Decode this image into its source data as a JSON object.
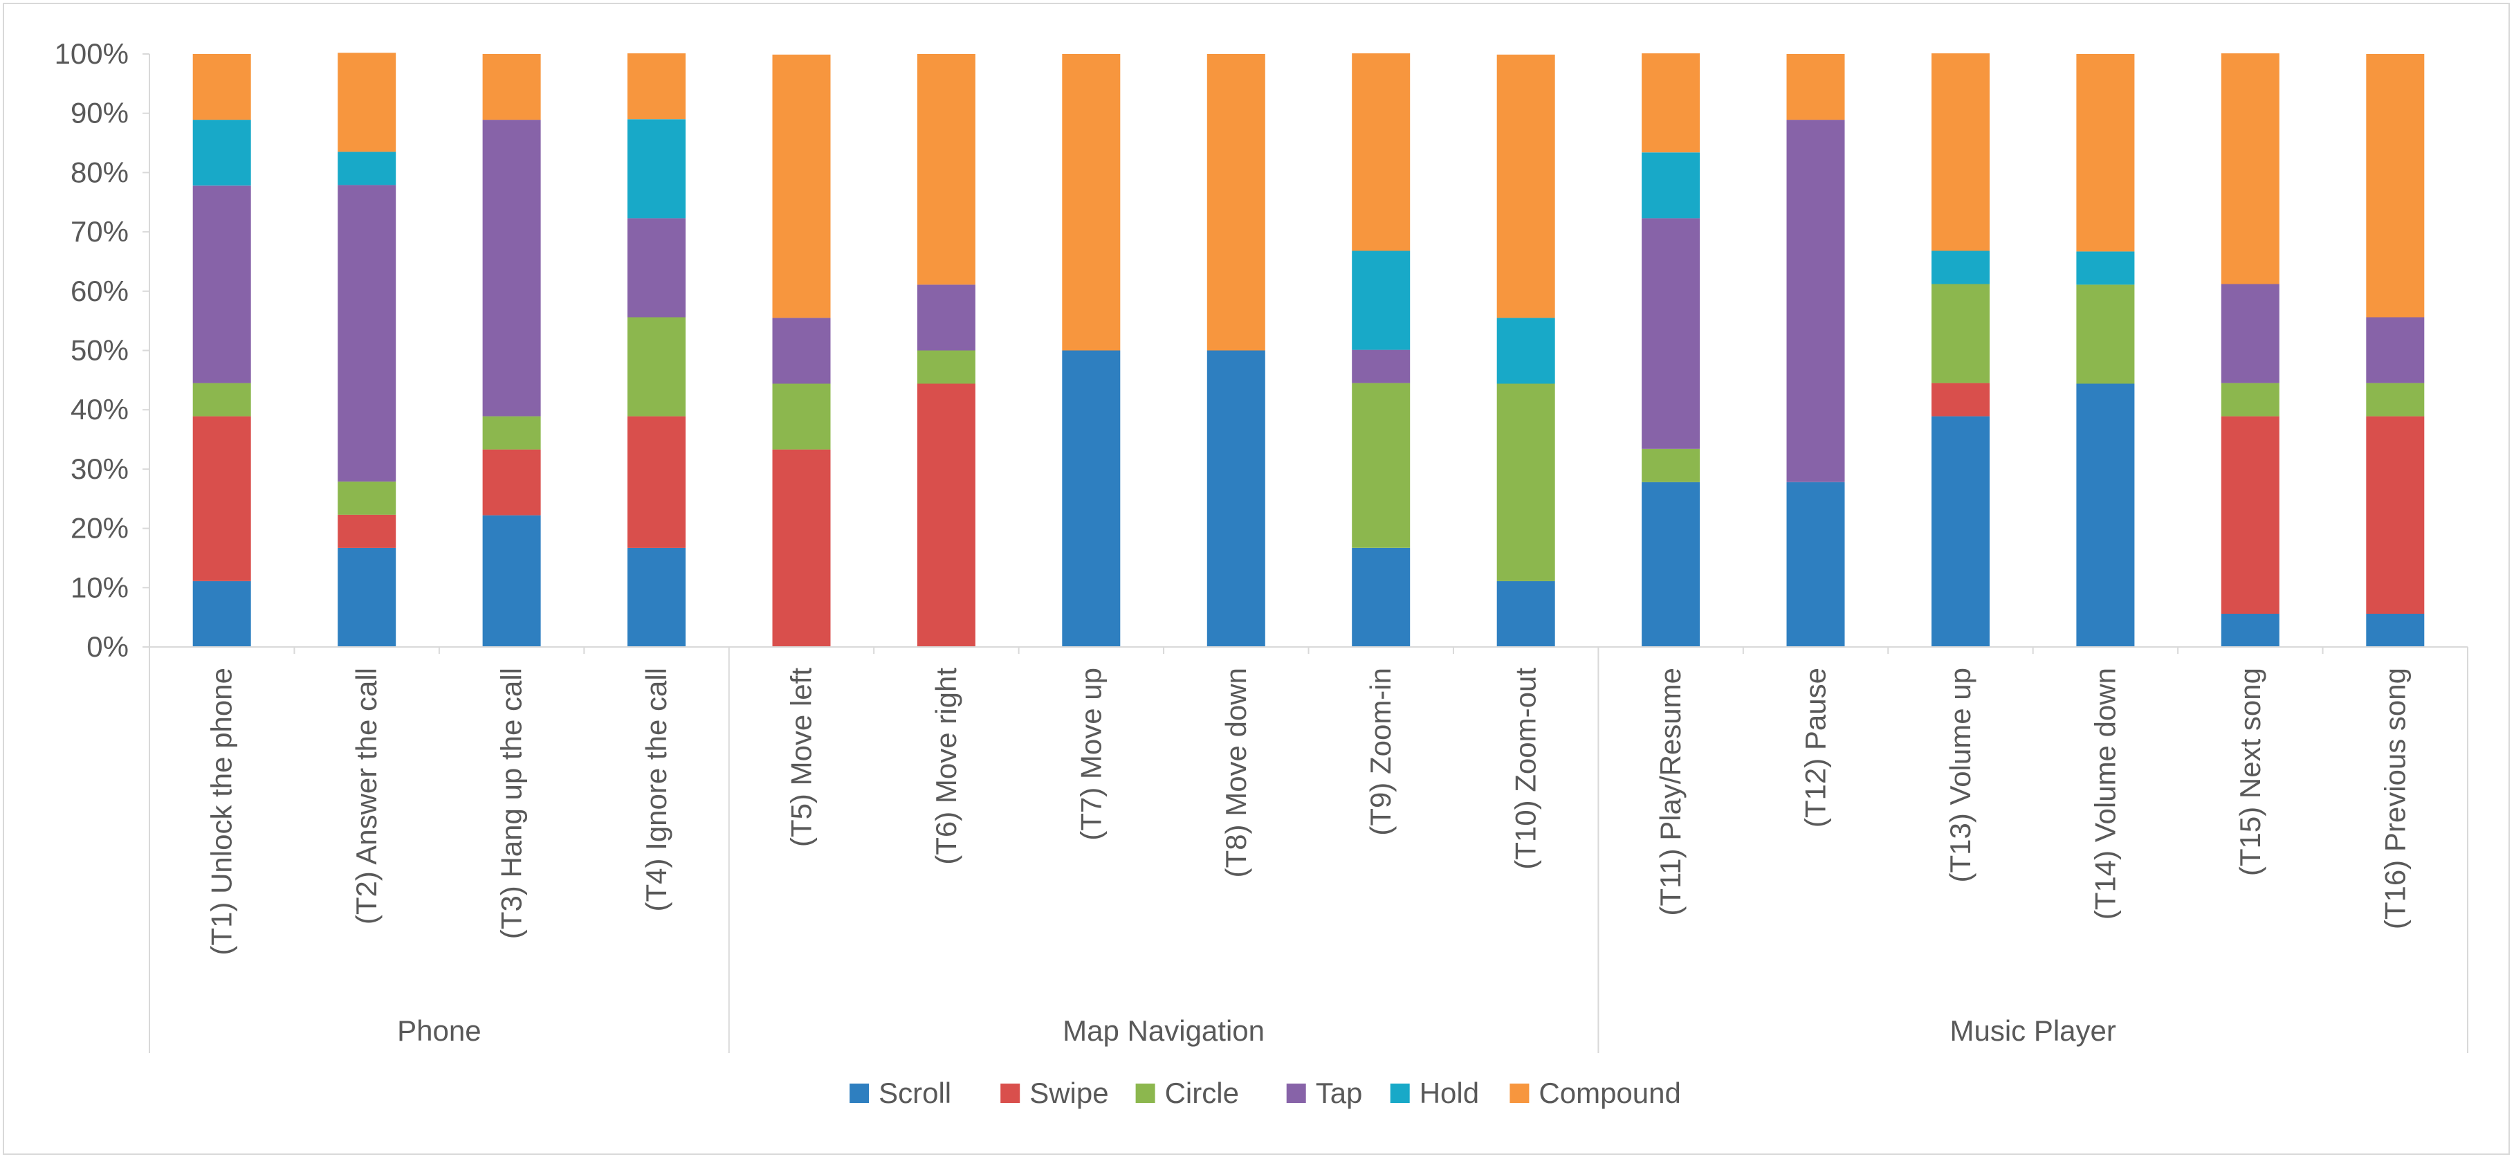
{
  "chart_data": {
    "type": "bar",
    "stacked": true,
    "title": "",
    "xlabel": "",
    "ylabel": "",
    "ylim": [
      0,
      100
    ],
    "yticks": [
      "0%",
      "10%",
      "20%",
      "30%",
      "40%",
      "50%",
      "60%",
      "70%",
      "80%",
      "90%",
      "100%"
    ],
    "grid": false,
    "legend_position": "bottom-center",
    "groups": [
      {
        "name": "Phone",
        "start": 0,
        "count": 4
      },
      {
        "name": "Map Navigation",
        "start": 4,
        "count": 6
      },
      {
        "name": "Music Player",
        "start": 10,
        "count": 6
      }
    ],
    "categories": [
      "(T1) Unlock the phone",
      "(T2) Answer the call",
      "(T3) Hang up the call",
      "(T4) Ignore the call",
      "(T5) Move left",
      "(T6) Move right",
      "(T7) Move up",
      "(T8) Move down",
      "(T9) Zoom-in",
      "(T10) Zoom-out",
      "(T11) Play/Resume",
      "(T12) Pause",
      "(T13) Volume up",
      "(T14) Volume down",
      "(T15) Next song",
      "(T16) Previous song"
    ],
    "series": [
      {
        "name": "Scroll",
        "color": "#2e7fc0",
        "values": [
          11.1,
          16.7,
          22.2,
          16.7,
          0,
          0,
          50,
          50,
          16.7,
          11.1,
          27.8,
          27.8,
          38.9,
          44.4,
          5.6,
          5.6
        ]
      },
      {
        "name": "Swipe",
        "color": "#d94f4c",
        "values": [
          27.8,
          5.6,
          11.1,
          22.2,
          33.3,
          44.4,
          0,
          0,
          0,
          0,
          0,
          0,
          5.6,
          0,
          33.3,
          33.3
        ]
      },
      {
        "name": "Circle",
        "color": "#8cb74e",
        "values": [
          5.6,
          5.6,
          5.6,
          16.7,
          11.1,
          5.6,
          0,
          0,
          27.8,
          33.3,
          5.6,
          0,
          16.7,
          16.7,
          5.6,
          5.6
        ]
      },
      {
        "name": "Tap",
        "color": "#8763a8",
        "values": [
          33.3,
          50,
          50,
          16.7,
          11.1,
          11.1,
          0,
          0,
          5.6,
          0,
          38.9,
          61.1,
          0,
          0,
          16.7,
          11.1
        ]
      },
      {
        "name": "Hold",
        "color": "#18a9c8",
        "values": [
          11.1,
          5.6,
          0,
          16.7,
          0,
          0,
          0,
          0,
          16.7,
          11.1,
          11.1,
          0,
          5.6,
          5.6,
          0,
          0
        ]
      },
      {
        "name": "Compound",
        "color": "#f7963e",
        "values": [
          11.1,
          16.7,
          11.1,
          11.1,
          44.4,
          38.9,
          50,
          50,
          33.3,
          44.4,
          16.7,
          11.1,
          33.3,
          33.3,
          38.9,
          44.4
        ]
      }
    ]
  }
}
